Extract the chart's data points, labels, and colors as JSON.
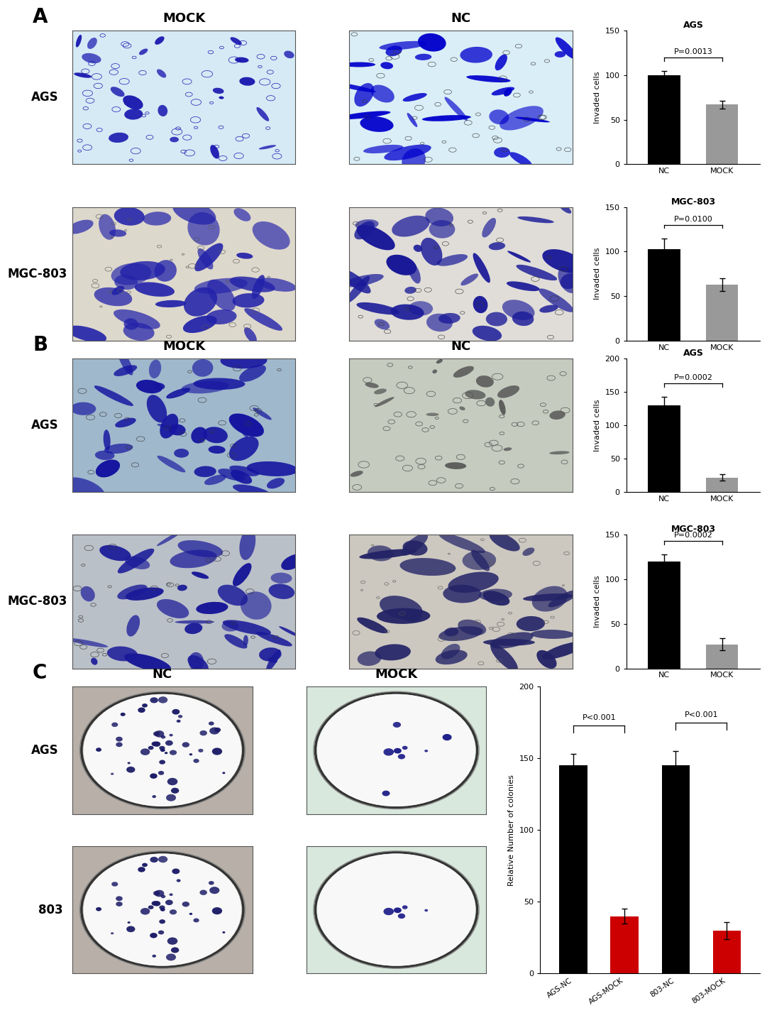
{
  "panel_A": {
    "label": "A",
    "title_AGS": "AGS",
    "title_MGC": "MGC-803",
    "col_headers": [
      "MOCK",
      "NC"
    ],
    "row_labels": [
      "AGS",
      "MGC-803"
    ],
    "AGS": {
      "categories": [
        "NC",
        "MOCK"
      ],
      "values": [
        100,
        67
      ],
      "errors": [
        5,
        4
      ],
      "colors": [
        "#000000",
        "#999999"
      ],
      "ylabel": "Invaded cells",
      "ylim": [
        0,
        150
      ],
      "yticks": [
        0,
        50,
        100,
        150
      ],
      "pvalue": "P=0.0013",
      "bar_width": 0.55
    },
    "MGC": {
      "categories": [
        "NC",
        "MOCK"
      ],
      "values": [
        103,
        63
      ],
      "errors": [
        12,
        7
      ],
      "colors": [
        "#000000",
        "#999999"
      ],
      "ylabel": "Invaded cells",
      "ylim": [
        0,
        150
      ],
      "yticks": [
        0,
        50,
        100,
        150
      ],
      "pvalue": "P=0.0100",
      "bar_width": 0.55
    },
    "img_A1_bg": "#d8eef5",
    "img_A2_bg": "#daeef6",
    "img_A3_bg": "#ddd5c8",
    "img_A4_bg": "#e0ddd5"
  },
  "panel_B": {
    "label": "B",
    "title_AGS": "AGS",
    "title_MGC": "MGC-803",
    "col_headers": [
      "MOCK",
      "NC"
    ],
    "row_labels": [
      "AGS",
      "MGC-803"
    ],
    "AGS": {
      "categories": [
        "NC",
        "MOCK"
      ],
      "values": [
        130,
        22
      ],
      "errors": [
        13,
        5
      ],
      "colors": [
        "#000000",
        "#999999"
      ],
      "ylabel": "Invaded cells",
      "ylim": [
        0,
        200
      ],
      "yticks": [
        0,
        50,
        100,
        150,
        200
      ],
      "pvalue": "P=0.0002",
      "bar_width": 0.55
    },
    "MGC": {
      "categories": [
        "NC",
        "MOCK"
      ],
      "values": [
        120,
        27
      ],
      "errors": [
        8,
        7
      ],
      "colors": [
        "#000000",
        "#999999"
      ],
      "ylabel": "Invaded cells",
      "ylim": [
        0,
        150
      ],
      "yticks": [
        0,
        50,
        100,
        150
      ],
      "pvalue": "P=0.0002",
      "bar_width": 0.55
    },
    "img_B1_bg": "#a8bfd0",
    "img_B2_bg": "#c8cfc0",
    "img_B3_bg": "#c0c0c0",
    "img_B4_bg": "#d0cdc5"
  },
  "panel_C": {
    "label": "C",
    "col_headers": [
      "NC",
      "MOCK"
    ],
    "row_labels": [
      "AGS",
      "803"
    ],
    "categories": [
      "AGS-NC",
      "AGS-MOCK",
      "803-NC",
      "803-MOCK"
    ],
    "values": [
      145,
      40,
      145,
      30
    ],
    "errors": [
      8,
      5,
      10,
      6
    ],
    "colors": [
      "#000000",
      "#cc0000",
      "#000000",
      "#cc0000"
    ],
    "ylabel": "Relative Number of colonies",
    "ylim": [
      0,
      200
    ],
    "yticks": [
      0,
      50,
      100,
      150,
      200
    ],
    "pvalue1": "P<0.001",
    "pvalue2": "P<0.001",
    "bar_width": 0.55,
    "img_C1_bg": "#c8c0b4",
    "img_C2_bg": "#dce8e0",
    "img_C3_bg": "#c8c0b4",
    "img_C4_bg": "#dce8e0"
  },
  "background": "#ffffff",
  "font_panel_label": 20,
  "font_col_header": 13,
  "font_row_label": 12,
  "font_title": 9,
  "font_axis": 8,
  "font_tick": 8,
  "font_pval": 8
}
